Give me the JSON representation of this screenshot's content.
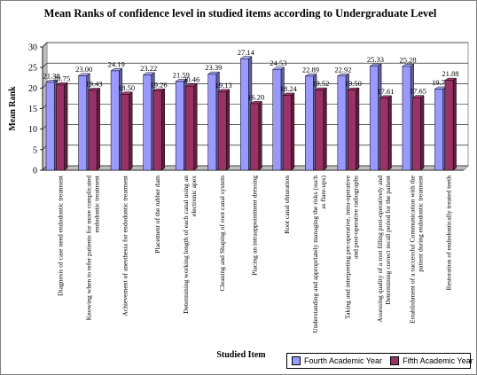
{
  "chart_data": {
    "type": "bar",
    "title": "Mean Ranks of confidence level in studied items according to Undergraduate Level",
    "xlabel": "Studied Item",
    "ylabel": "Mean Rank",
    "ylim": [
      0,
      30
    ],
    "yticks": [
      0,
      5,
      10,
      15,
      20,
      25,
      30
    ],
    "grid": true,
    "legend_position": "bottom-right",
    "categories": [
      "Diagnosis of case need endodontic treatment",
      "Knowing when to refer patients for more complicated endodontic treatment",
      "Achievement of anesthesia for endodontic treatment",
      "Placement of the rubber dam",
      "Determining working length of each canal using an electronic apex",
      "Cleaning and Shaping of root canal system",
      "Placing an intraappointment dressing",
      "Root canal obturation",
      "Understanding and appropriately managing the risks (such as flare-ups)",
      "Taking and interpreting pre-operative, intra-operative and post-operative radiographs",
      "Assessing quality of a root filling post-operatively and Determining correct recall period for the patient",
      "Establishment of a successful Communication with the patient during endodontic treatment",
      "Restoration of endodontically treated teeth"
    ],
    "series": [
      {
        "name": "Fourth Academic Year",
        "color": "#9999ff",
        "values": [
          21.38,
          23.0,
          24.19,
          23.22,
          21.59,
          23.39,
          27.14,
          24.53,
          22.89,
          22.92,
          25.33,
          25.28,
          19.75
        ],
        "labels": [
          "21.38",
          "23.00",
          "24.19",
          "23.22",
          "21.59",
          "23.39",
          "27.14",
          "24.53",
          "22.89",
          "22.92",
          "25.33",
          "25.28",
          "19.75"
        ]
      },
      {
        "name": "Fifth Academic Year",
        "color": "#993366",
        "values": [
          20.75,
          19.43,
          18.5,
          19.26,
          20.46,
          19.13,
          16.2,
          18.24,
          19.52,
          19.5,
          17.61,
          17.65,
          21.88
        ],
        "labels": [
          "20.75",
          "19.43",
          "18.50",
          "19.26",
          "20.46",
          "19.13",
          "16.20",
          "18.24",
          "19.52",
          "19.50",
          "17.61",
          "17.65",
          "21.88"
        ]
      }
    ]
  }
}
